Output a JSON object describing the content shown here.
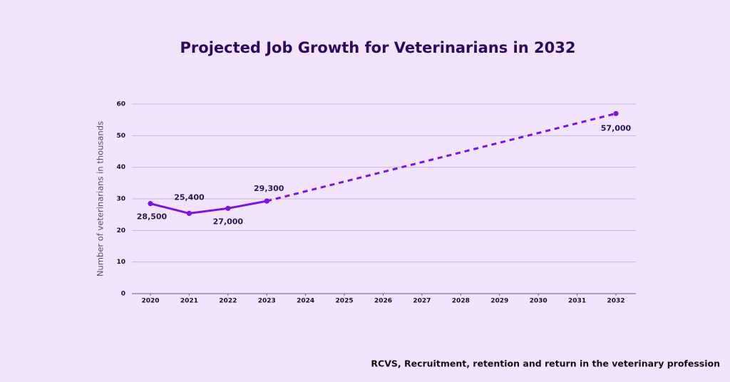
{
  "chart_data": {
    "type": "line",
    "title": "Projected Job Growth for Veterinarians in 2032",
    "y_label": "Number of veterinarians in thousands",
    "source": "RCVS, Recruitment, retention and return in the veterinary profession",
    "xlim": [
      2020,
      2032
    ],
    "xticks": [
      2020,
      2021,
      2022,
      2023,
      2024,
      2025,
      2026,
      2027,
      2028,
      2029,
      2030,
      2031,
      2032
    ],
    "ylim": [
      0,
      60
    ],
    "yticks": [
      0,
      10,
      20,
      30,
      40,
      50,
      60
    ],
    "grid": true,
    "series": [
      {
        "color": "#7b12e6",
        "dashed": false,
        "x": [
          2020,
          2021,
          2022,
          2023
        ],
        "values": [
          28.5,
          25.4,
          27,
          29.3
        ],
        "value_labels": [
          "28,500",
          "25,400",
          "27,000",
          "29,300"
        ]
      },
      {
        "color": "#7b12e6",
        "dashed": true,
        "x": [
          2023,
          2032
        ],
        "values": [
          29.3,
          57
        ],
        "value_labels": [
          null,
          "57,000"
        ]
      }
    ]
  }
}
